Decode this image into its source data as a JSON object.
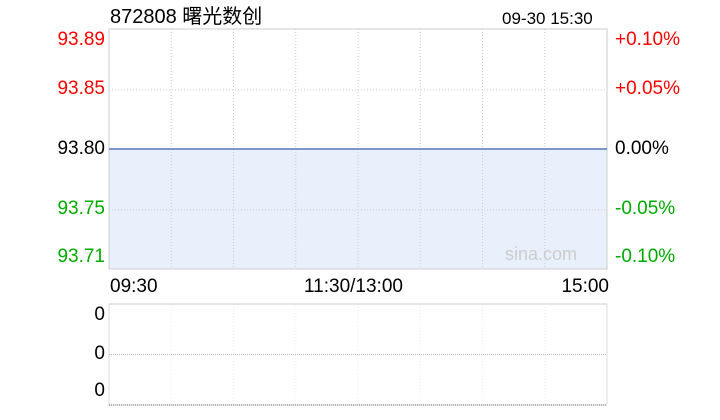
{
  "header": {
    "title": "872808 曙光数创",
    "datetime": "09-30 15:30"
  },
  "watermark": "sina.com",
  "colors": {
    "up": "#ff0000",
    "down": "#00aa00",
    "neutral": "#000000",
    "price_line": "#5577bb",
    "fill": "#e8f0fc"
  },
  "chart_data": [
    {
      "type": "line",
      "title": "",
      "x_ticks": [
        "09:30",
        "11:30/13:00",
        "15:00"
      ],
      "y_ticks_left": [
        "93.89",
        "93.85",
        "93.80",
        "93.75",
        "93.71"
      ],
      "y_ticks_right": [
        "+0.10%",
        "+0.05%",
        "0.00%",
        "-0.05%",
        "-0.10%"
      ],
      "ylim": [
        93.71,
        93.89
      ],
      "prev_close": 93.8,
      "grid": true,
      "series": [
        {
          "x": [
            "09:30",
            "15:00"
          ],
          "y": [
            93.8,
            93.8
          ]
        }
      ]
    },
    {
      "type": "bar",
      "title": "",
      "y_ticks": [
        "0",
        "0",
        "0"
      ],
      "values": [],
      "grid": true
    }
  ]
}
